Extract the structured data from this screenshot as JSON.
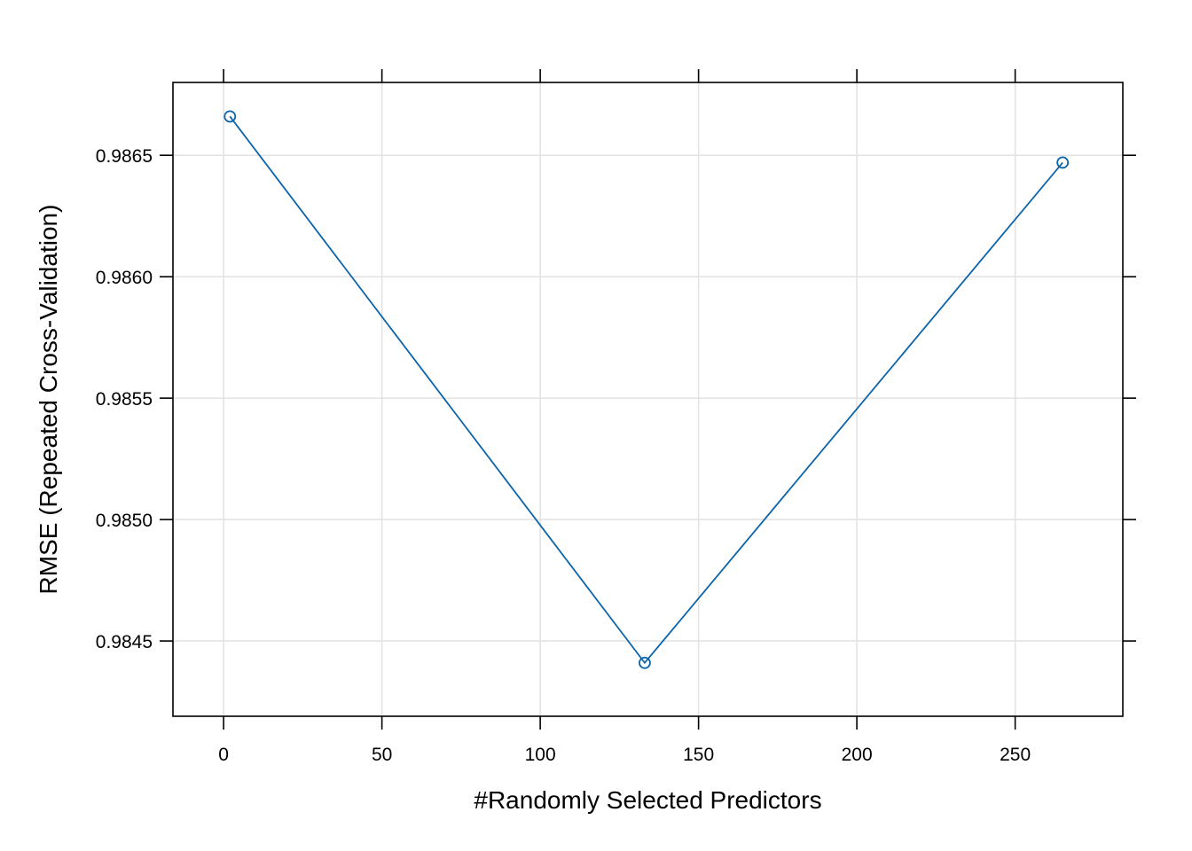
{
  "chart_data": {
    "type": "line",
    "title": "",
    "xlabel": "#Randomly Selected Predictors",
    "ylabel": "RMSE (Repeated Cross-Validation)",
    "xlim": [
      -16,
      284
    ],
    "ylim": [
      0.98419,
      0.9868
    ],
    "x_ticks": [
      0,
      50,
      100,
      150,
      200,
      250
    ],
    "x_tick_labels": [
      "0",
      "50",
      "100",
      "150",
      "200",
      "250"
    ],
    "y_ticks": [
      0.9845,
      0.985,
      0.9855,
      0.986,
      0.9865
    ],
    "y_tick_labels": [
      "0.9845",
      "0.9850",
      "0.9855",
      "0.9860",
      "0.9865"
    ],
    "grid": true,
    "series": [
      {
        "x": [
          2,
          133,
          265
        ],
        "values": [
          0.98666,
          0.98441,
          0.98647
        ],
        "color": "#0b64aa",
        "marker": "open-circle"
      }
    ]
  }
}
